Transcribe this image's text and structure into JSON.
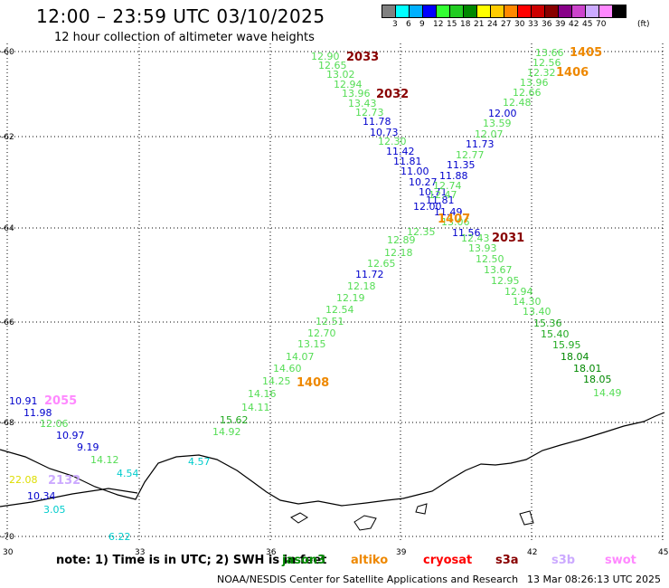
{
  "header": {
    "title": "12:00 – 23:59 UTC 03/10/2025",
    "subtitle": "12 hour collection of altimeter wave heights"
  },
  "scale": {
    "unit": "(ft)",
    "colors": [
      "#808080",
      "#00ffff",
      "#00b0ff",
      "#0000ff",
      "#33ff33",
      "#22cc22",
      "#008800",
      "#ffff00",
      "#ffcc00",
      "#ff8800",
      "#ff0000",
      "#cc0000",
      "#880000",
      "#880088",
      "#cc44cc",
      "#ccaaff",
      "#ff88ff",
      "#000000"
    ],
    "labels": [
      "3",
      "6",
      "9",
      "12",
      "15",
      "18",
      "21",
      "24",
      "27",
      "30",
      "33",
      "36",
      "39",
      "42",
      "45",
      "70"
    ]
  },
  "axes": {
    "y_labels": [
      "-60",
      "-62",
      "-64",
      "-66",
      "-68",
      "-70"
    ],
    "x_labels": [
      "30",
      "33",
      "36",
      "39",
      "42",
      "45"
    ]
  },
  "points": [
    {
      "t": "12.90",
      "c": "#55dd55"
    },
    {
      "t": "12.65",
      "c": "#55dd55"
    },
    {
      "t": "13.02",
      "c": "#55dd55"
    },
    {
      "t": "12.94",
      "c": "#55dd55"
    },
    {
      "t": "13.96",
      "c": "#55dd55"
    },
    {
      "t": "13.43",
      "c": "#55dd55"
    },
    {
      "t": "12.73",
      "c": "#55dd55"
    },
    {
      "t": "11.78",
      "c": "#0000cc"
    },
    {
      "t": "10.73",
      "c": "#0000cc"
    },
    {
      "t": "12.30",
      "c": "#55dd55"
    },
    {
      "t": "11.42",
      "c": "#0000cc"
    },
    {
      "t": "11.81",
      "c": "#0000cc"
    },
    {
      "t": "11.00",
      "c": "#0000cc"
    },
    {
      "t": "10.27",
      "c": "#0000cc"
    },
    {
      "t": "10.71",
      "c": "#0000cc"
    },
    {
      "t": "11.81",
      "c": "#0000cc"
    },
    {
      "t": "11.49",
      "c": "#0000cc"
    },
    {
      "t": "11.56",
      "c": "#0000cc"
    },
    {
      "t": "12.43",
      "c": "#55dd55"
    },
    {
      "t": "13.93",
      "c": "#55dd55"
    },
    {
      "t": "12.50",
      "c": "#55dd55"
    },
    {
      "t": "13.67",
      "c": "#55dd55"
    },
    {
      "t": "12.95",
      "c": "#55dd55"
    },
    {
      "t": "12.94",
      "c": "#55dd55"
    },
    {
      "t": "14.30",
      "c": "#55dd55"
    },
    {
      "t": "13.40",
      "c": "#55dd55"
    },
    {
      "t": "15.36",
      "c": "#22aa22"
    },
    {
      "t": "15.40",
      "c": "#22aa22"
    },
    {
      "t": "15.95",
      "c": "#22aa22"
    },
    {
      "t": "18.04",
      "c": "#008800"
    },
    {
      "t": "18.01",
      "c": "#008800"
    },
    {
      "t": "18.05",
      "c": "#008800"
    },
    {
      "t": "14.49",
      "c": "#55dd55"
    },
    {
      "t": "13.66",
      "c": "#55dd55"
    },
    {
      "t": "12.56",
      "c": "#55dd55"
    },
    {
      "t": "12.32",
      "c": "#55dd55"
    },
    {
      "t": "13.96",
      "c": "#55dd55"
    },
    {
      "t": "12.66",
      "c": "#55dd55"
    },
    {
      "t": "12.48",
      "c": "#55dd55"
    },
    {
      "t": "12.00",
      "c": "#0000cc"
    },
    {
      "t": "13.59",
      "c": "#55dd55"
    },
    {
      "t": "12.07",
      "c": "#55dd55"
    },
    {
      "t": "11.73",
      "c": "#0000cc"
    },
    {
      "t": "12.77",
      "c": "#55dd55"
    },
    {
      "t": "11.35",
      "c": "#0000cc"
    },
    {
      "t": "11.88",
      "c": "#0000cc"
    },
    {
      "t": "12.74",
      "c": "#55dd55"
    },
    {
      "t": "12.47",
      "c": "#55dd55"
    },
    {
      "t": "12.00",
      "c": "#0000cc"
    },
    {
      "t": "13.06",
      "c": "#55dd55"
    },
    {
      "t": "12.35",
      "c": "#55dd55"
    },
    {
      "t": "12.89",
      "c": "#55dd55"
    },
    {
      "t": "12.18",
      "c": "#55dd55"
    },
    {
      "t": "12.65",
      "c": "#55dd55"
    },
    {
      "t": "11.72",
      "c": "#0000cc"
    },
    {
      "t": "12.18",
      "c": "#55dd55"
    },
    {
      "t": "12.19",
      "c": "#55dd55"
    },
    {
      "t": "12.54",
      "c": "#55dd55"
    },
    {
      "t": "12.51",
      "c": "#55dd55"
    },
    {
      "t": "12.70",
      "c": "#55dd55"
    },
    {
      "t": "13.15",
      "c": "#55dd55"
    },
    {
      "t": "14.07",
      "c": "#55dd55"
    },
    {
      "t": "14.60",
      "c": "#55dd55"
    },
    {
      "t": "14.25",
      "c": "#55dd55"
    },
    {
      "t": "14.16",
      "c": "#55dd55"
    },
    {
      "t": "14.11",
      "c": "#55dd55"
    },
    {
      "t": "15.62",
      "c": "#22aa22"
    },
    {
      "t": "14.92",
      "c": "#55dd55"
    },
    {
      "t": "10.91",
      "c": "#0000cc"
    },
    {
      "t": "11.98",
      "c": "#0000cc"
    },
    {
      "t": "12.06",
      "c": "#55dd55"
    },
    {
      "t": "10.97",
      "c": "#0000cc"
    },
    {
      "t": "9.19",
      "c": "#0000cc"
    },
    {
      "t": "14.12",
      "c": "#55dd55"
    },
    {
      "t": "4.54",
      "c": "#00cccc"
    },
    {
      "t": "4.57",
      "c": "#00cccc"
    },
    {
      "t": "22.08",
      "c": "#dddd00"
    },
    {
      "t": "10.34",
      "c": "#0000cc"
    },
    {
      "t": "3.05",
      "c": "#00cccc"
    },
    {
      "t": "6.22",
      "c": "#00cccc"
    }
  ],
  "tracks": [
    {
      "t": "2033",
      "c": "#880000"
    },
    {
      "t": "2032",
      "c": "#880000"
    },
    {
      "t": "1405",
      "c": "#ee8800"
    },
    {
      "t": "1406",
      "c": "#ee8800"
    },
    {
      "t": "1407",
      "c": "#ee8800"
    },
    {
      "t": "2031",
      "c": "#880000"
    },
    {
      "t": "1408",
      "c": "#ee8800"
    },
    {
      "t": "2055",
      "c": "#ff88ff"
    },
    {
      "t": "2132",
      "c": "#ccaaff"
    }
  ],
  "footer": {
    "note": "note:  1) Time is in UTC;  2) SWH is in feet",
    "satellites": [
      {
        "name": "jason3",
        "color": "#008800"
      },
      {
        "name": "altiko",
        "color": "#ee8800"
      },
      {
        "name": "cryosat",
        "color": "#ff0000"
      },
      {
        "name": "s3a",
        "color": "#880000"
      },
      {
        "name": "s3b",
        "color": "#ccaaff"
      },
      {
        "name": "swot",
        "color": "#ff88ff"
      }
    ],
    "credit": "NOAA/NESDIS Center for Satellite Applications and Research",
    "timestamp": "13 Mar 08:26:13 UTC 2025"
  }
}
